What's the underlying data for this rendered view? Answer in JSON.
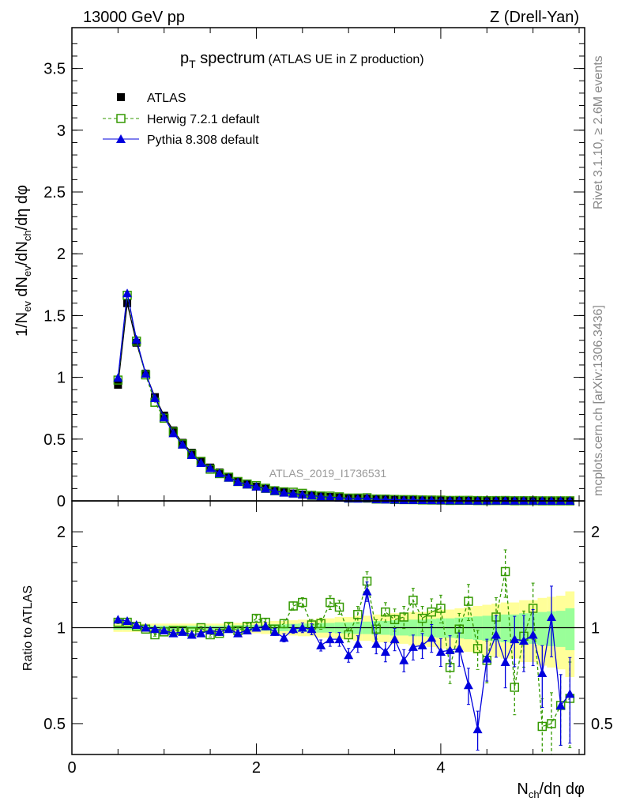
{
  "header": {
    "left": "13000 GeV pp",
    "right": "Z (Drell-Yan)"
  },
  "side_text": {
    "rivet": "Rivet 3.1.10, ≥ 2.6M events",
    "mcplots": "mcplots.cern.ch [arXiv:1306.3436]"
  },
  "chart_data": {
    "type": "scatter",
    "title_main": "p",
    "title_sub": "T",
    "title_rest": " spectrum",
    "title_paren": "(ATLAS UE in Z production)",
    "analysis_id": "ATLAS_2019_I1736531",
    "ylabel_parts": [
      "1/N",
      "ev",
      " dN",
      "ev",
      "/dN",
      "ch",
      "/dη dφ"
    ],
    "ratio_ylabel": "Ratio to ATLAS",
    "xlabel_parts": [
      "N",
      "ch",
      "/dη dφ"
    ],
    "xlim": [
      0,
      5.56
    ],
    "ylim": [
      0,
      3.83
    ],
    "ratio_ylim": [
      0.4,
      2.5
    ],
    "ratio_scale": "log",
    "x_ticks": [
      "0",
      "2",
      "4"
    ],
    "y_ticks": [
      "0",
      "0.5",
      "1",
      "1.5",
      "2",
      "2.5",
      "3",
      "3.5"
    ],
    "ratio_ticks": [
      "0.5",
      "1",
      "2"
    ],
    "legend": {
      "position": "top-left",
      "entries": [
        "ATLAS",
        "Herwig 7.2.1 default",
        "Pythia 8.308 default"
      ]
    },
    "colors": {
      "atlas": "#000000",
      "herwig": "#339900",
      "pythia": "#0000dd",
      "band_outer": "#ffff99",
      "band_inner": "#99ff99"
    },
    "x": [
      0.5,
      0.6,
      0.7,
      0.8,
      0.9,
      1.0,
      1.1,
      1.2,
      1.3,
      1.4,
      1.5,
      1.6,
      1.7,
      1.8,
      1.9,
      2.0,
      2.1,
      2.2,
      2.3,
      2.4,
      2.5,
      2.6,
      2.7,
      2.8,
      2.9,
      3.0,
      3.1,
      3.2,
      3.3,
      3.4,
      3.5,
      3.6,
      3.7,
      3.8,
      3.9,
      4.0,
      4.1,
      4.2,
      4.3,
      4.4,
      4.5,
      4.6,
      4.7,
      4.8,
      4.9,
      5.0,
      5.1,
      5.2,
      5.3,
      5.4
    ],
    "atlas": [
      0.94,
      1.6,
      1.28,
      1.03,
      0.84,
      0.69,
      0.57,
      0.47,
      0.39,
      0.32,
      0.27,
      0.23,
      0.19,
      0.16,
      0.135,
      0.115,
      0.098,
      0.083,
      0.071,
      0.06,
      0.051,
      0.044,
      0.038,
      0.032,
      0.028,
      0.024,
      0.021,
      0.018,
      0.015,
      0.013,
      0.011,
      0.0095,
      0.0082,
      0.0071,
      0.0061,
      0.0053,
      0.0046,
      0.004,
      0.0035,
      0.003,
      0.0026,
      0.0023,
      0.002,
      0.0017,
      0.0015,
      0.0013,
      0.0011,
      0.001,
      0.0009,
      0.0008
    ],
    "herwig_ratio": [
      1.04,
      1.04,
      1.01,
      0.99,
      0.95,
      0.97,
      0.98,
      0.98,
      0.97,
      1.0,
      0.95,
      0.96,
      1.01,
      0.98,
      1.01,
      1.07,
      1.04,
      0.99,
      1.03,
      1.17,
      1.2,
      1.02,
      1.03,
      1.2,
      1.16,
      0.95,
      1.1,
      1.4,
      0.99,
      1.12,
      1.06,
      1.08,
      1.22,
      1.07,
      1.12,
      1.15,
      0.75,
      0.99,
      1.21,
      0.86,
      0.79,
      1.08,
      1.5,
      0.65,
      0.94,
      1.15,
      0.49,
      0.5,
      0.57,
      0.6
    ],
    "pythia_ratio": [
      1.06,
      1.05,
      1.02,
      1.0,
      0.99,
      0.98,
      0.96,
      0.97,
      0.95,
      0.96,
      0.98,
      0.97,
      0.99,
      0.96,
      0.98,
      1.0,
      1.01,
      0.97,
      0.93,
      0.99,
      1.0,
      0.99,
      0.88,
      0.92,
      0.92,
      0.82,
      0.89,
      1.3,
      0.89,
      0.84,
      0.92,
      0.79,
      0.87,
      0.88,
      0.93,
      0.84,
      0.85,
      0.86,
      0.66,
      0.48,
      0.8,
      0.95,
      0.78,
      0.92,
      0.91,
      0.95,
      0.72,
      1.08,
      0.57,
      0.62
    ],
    "band_outer_halfwidth": [
      0.03,
      0.03,
      0.03,
      0.03,
      0.03,
      0.03,
      0.03,
      0.03,
      0.03,
      0.03,
      0.03,
      0.03,
      0.035,
      0.035,
      0.04,
      0.04,
      0.045,
      0.05,
      0.05,
      0.055,
      0.06,
      0.06,
      0.07,
      0.07,
      0.08,
      0.08,
      0.09,
      0.09,
      0.1,
      0.1,
      0.11,
      0.11,
      0.12,
      0.12,
      0.13,
      0.14,
      0.14,
      0.15,
      0.16,
      0.17,
      0.18,
      0.19,
      0.2,
      0.2,
      0.22,
      0.22,
      0.24,
      0.25,
      0.26,
      0.3
    ],
    "band_inner_halfwidth": [
      0.015,
      0.015,
      0.015,
      0.015,
      0.015,
      0.015,
      0.015,
      0.015,
      0.015,
      0.015,
      0.015,
      0.015,
      0.018,
      0.018,
      0.02,
      0.02,
      0.022,
      0.025,
      0.025,
      0.028,
      0.03,
      0.03,
      0.035,
      0.035,
      0.04,
      0.04,
      0.045,
      0.045,
      0.05,
      0.05,
      0.055,
      0.055,
      0.06,
      0.06,
      0.065,
      0.07,
      0.07,
      0.075,
      0.08,
      0.085,
      0.09,
      0.095,
      0.1,
      0.1,
      0.11,
      0.11,
      0.12,
      0.125,
      0.13,
      0.15
    ],
    "mc_error": [
      0.01,
      0.01,
      0.01,
      0.01,
      0.01,
      0.01,
      0.01,
      0.01,
      0.01,
      0.01,
      0.015,
      0.015,
      0.02,
      0.02,
      0.02,
      0.02,
      0.025,
      0.025,
      0.03,
      0.03,
      0.035,
      0.04,
      0.04,
      0.05,
      0.05,
      0.05,
      0.06,
      0.07,
      0.07,
      0.07,
      0.08,
      0.08,
      0.09,
      0.09,
      0.1,
      0.1,
      0.11,
      0.12,
      0.13,
      0.14,
      0.15,
      0.15,
      0.17,
      0.18,
      0.2,
      0.2,
      0.22,
      0.25,
      0.25,
      0.3
    ]
  }
}
